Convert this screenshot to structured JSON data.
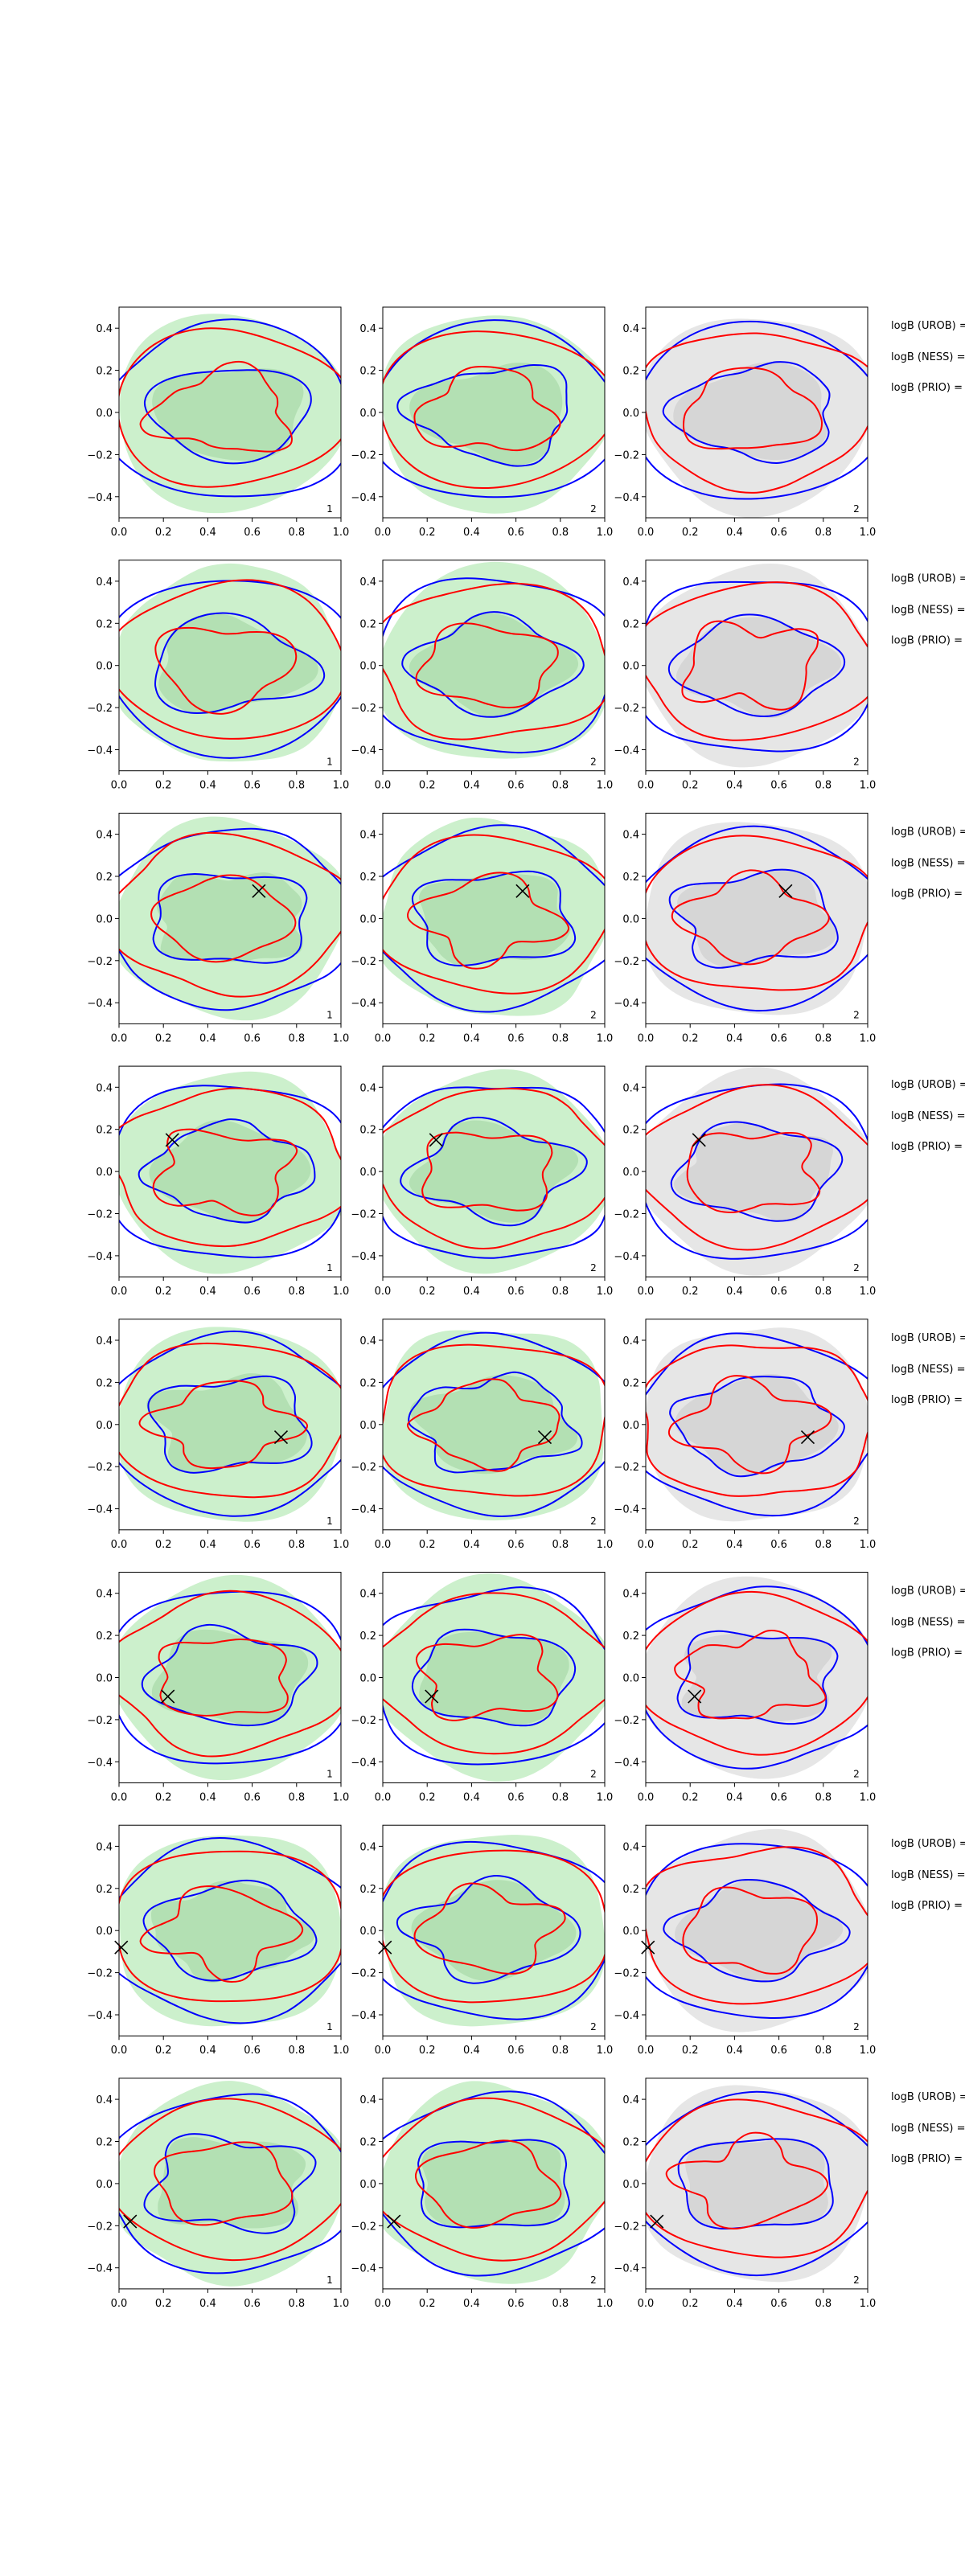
{
  "colors": {
    "red_contour": "#ff0000",
    "blue_contour": "#0000ff",
    "green_fill": "#ccf0cc",
    "green_fill_dark": "#a8d8a8",
    "grey_fill": "#e6e6e6",
    "grey_fill_dark": "#cfcfcf",
    "marker": "#000000"
  },
  "chart_data": {
    "type": "contour-grid",
    "rows": 8,
    "columns": 3,
    "xlim": [
      0.0,
      1.0
    ],
    "ylim": [
      -0.5,
      0.5
    ],
    "x_ticks": [
      "0.0",
      "0.2",
      "0.4",
      "0.6",
      "0.8",
      "1.0"
    ],
    "y_ticks": [
      "0.4",
      "0.2",
      "0.0",
      "−0.2",
      "−0.4"
    ],
    "panel_labels": [
      "1",
      "2",
      "2"
    ],
    "background_fill_per_column": [
      "green",
      "green",
      "grey"
    ],
    "row_annotations": [
      "logB (UROB) =",
      "logB (NESS) =",
      "logB (PRIO) ="
    ],
    "markers": [
      null,
      null,
      {
        "x": 0.63,
        "y": 0.13
      },
      {
        "x": 0.24,
        "y": 0.15
      },
      {
        "x": 0.73,
        "y": -0.06
      },
      {
        "x": 0.22,
        "y": -0.09
      },
      {
        "x": 0.01,
        "y": -0.08
      },
      {
        "x": 0.05,
        "y": -0.18
      }
    ]
  }
}
